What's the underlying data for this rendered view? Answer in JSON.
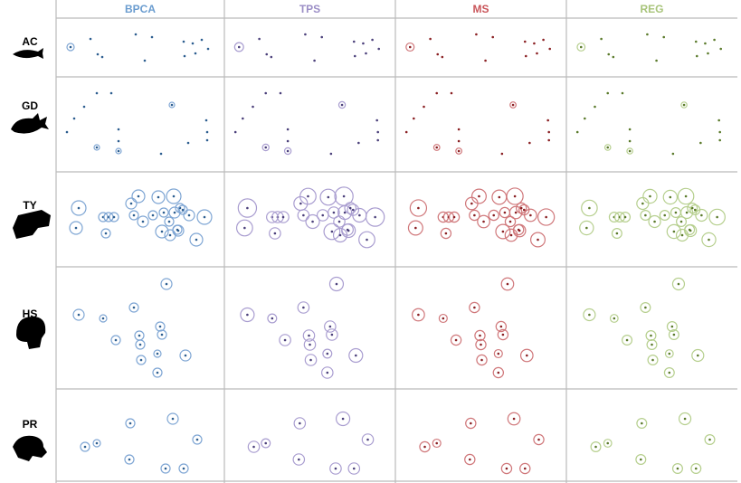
{
  "columns": [
    "BPCA",
    "TPS",
    "MS",
    "REG"
  ],
  "rows": [
    "AC",
    "GD",
    "TY",
    "HS",
    "PR"
  ]
}
